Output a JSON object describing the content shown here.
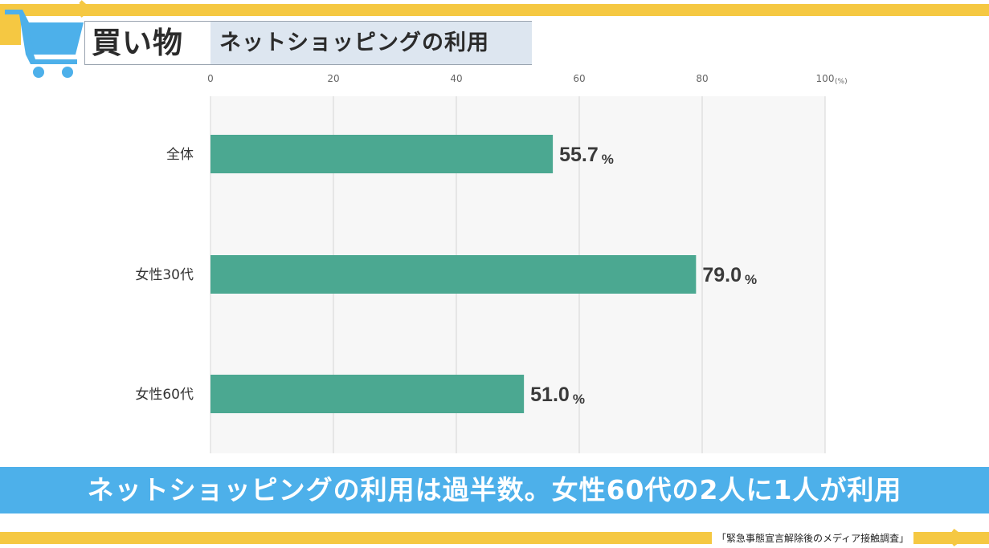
{
  "header": {
    "title": "買い物",
    "subtitle": "ネットショッピングの利用"
  },
  "colors": {
    "accent_yellow": "#f5c842",
    "banner_blue": "#4db0ea",
    "cart_blue": "#4db0ea",
    "bar_green": "#4ba891",
    "plot_bg": "#f7f7f7",
    "subtitle_bg": "#dde6f0"
  },
  "icons": {
    "cart": "shopping-cart-icon"
  },
  "banner": {
    "text": "ネットショッピングの利用は過半数。女性60代の2人に1人が利用"
  },
  "source": "「緊急事態宣言解除後のメディア接触調査」",
  "chart_data": {
    "type": "bar",
    "orientation": "horizontal",
    "categories": [
      "全体",
      "女性30代",
      "女性60代"
    ],
    "values": [
      55.7,
      79.0,
      51.0
    ],
    "value_labels": [
      "55.7",
      "79.0",
      "51.0"
    ],
    "value_unit": "%",
    "xlim": [
      0,
      100
    ],
    "x_ticks": [
      "0",
      "20",
      "40",
      "60",
      "80",
      "100"
    ],
    "x_unit": "(%)",
    "x_axis_position": "top",
    "grid": true
  }
}
